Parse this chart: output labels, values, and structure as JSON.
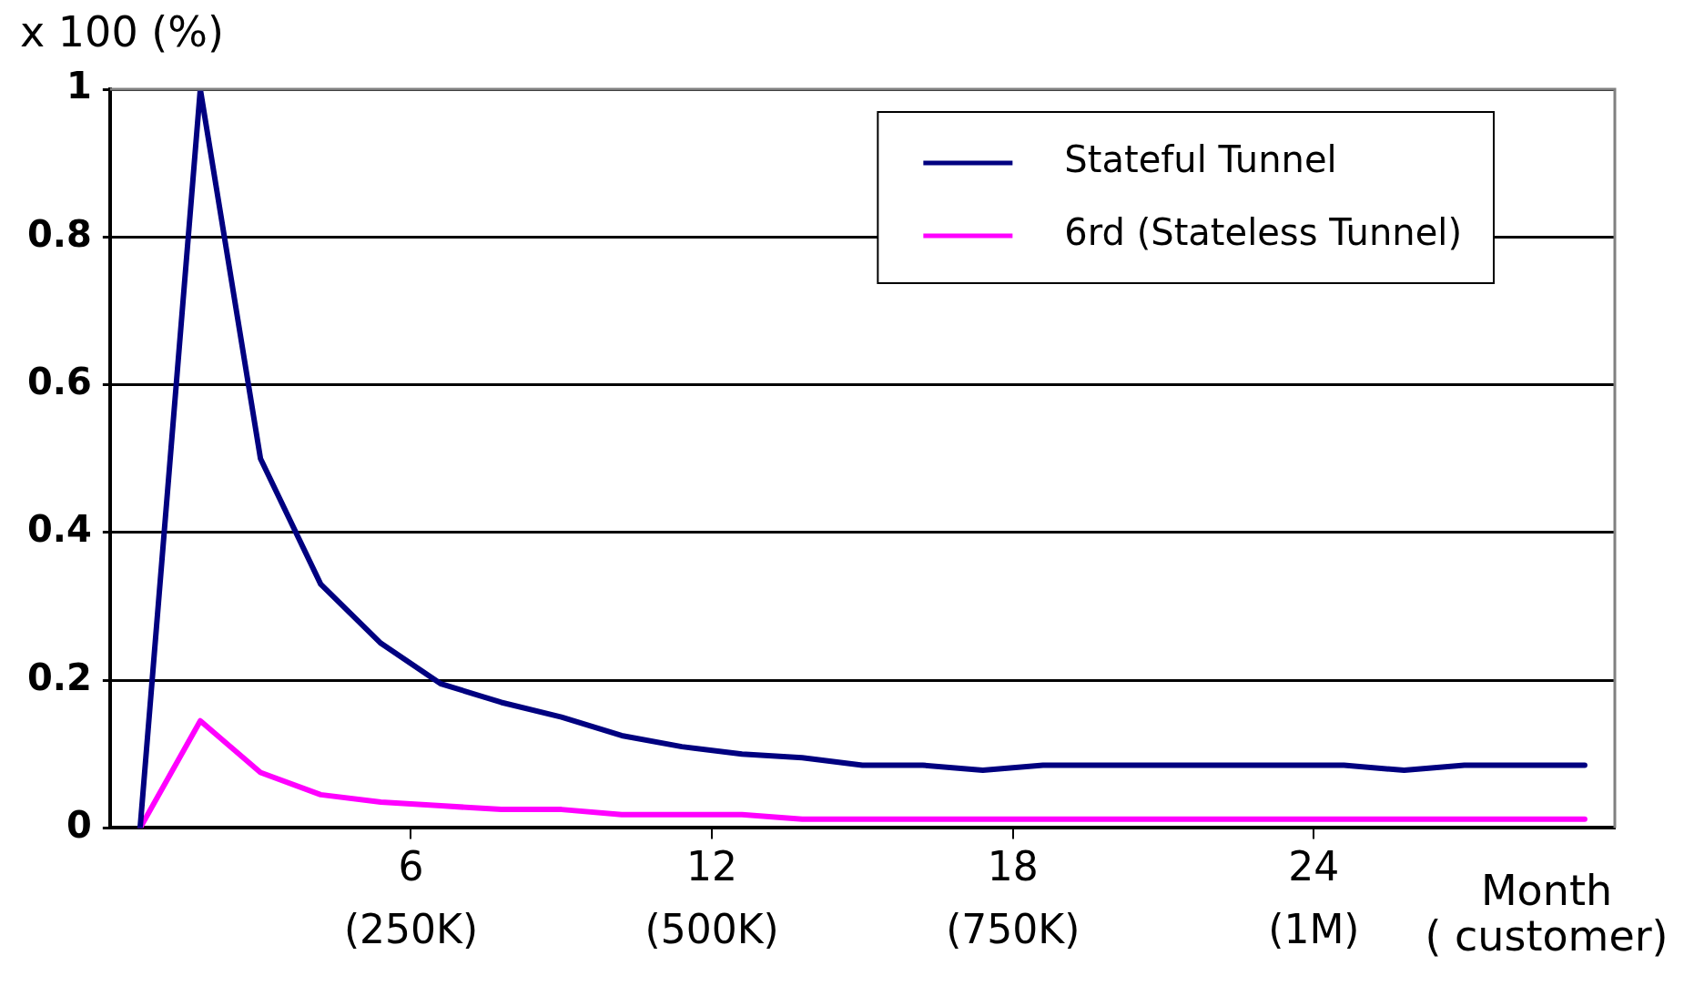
{
  "chart_data": {
    "type": "line",
    "ylabel": "x 100 (%)",
    "xlabel": "Month\n( customer)",
    "x": [
      0.6,
      1.8,
      3.0,
      4.2,
      5.4,
      6.6,
      7.8,
      9.0,
      10.2,
      11.4,
      12.6,
      13.8,
      15.0,
      16.2,
      17.4,
      18.6,
      19.8,
      21.0,
      22.2,
      23.4,
      24.6,
      25.8,
      27.0,
      28.2,
      29.4
    ],
    "series": [
      {
        "name": "Stateful Tunnel",
        "color": "#000080",
        "values": [
          0,
          1,
          0.5,
          0.33,
          0.25,
          0.195,
          0.17,
          0.15,
          0.125,
          0.11,
          0.1,
          0.095,
          0.085,
          0.085,
          0.078,
          0.085,
          0.085,
          0.085,
          0.085,
          0.085,
          0.085,
          0.078,
          0.085,
          0.085,
          0.085
        ]
      },
      {
        "name": "6rd (Stateless Tunnel)",
        "color": "#ff00ff",
        "values": [
          0,
          0.145,
          0.075,
          0.045,
          0.035,
          0.03,
          0.025,
          0.025,
          0.018,
          0.018,
          0.018,
          0.012,
          0.012,
          0.012,
          0.012,
          0.012,
          0.012,
          0.012,
          0.012,
          0.012,
          0.012,
          0.012,
          0.012,
          0.012,
          0.012
        ]
      }
    ],
    "xlim": [
      0,
      30
    ],
    "xticks": [
      6,
      12,
      18,
      24
    ],
    "x2lim": [
      0,
      1250000
    ],
    "x2ticks": [
      {
        "value": 250000,
        "label": "(250K)"
      },
      {
        "value": 500000,
        "label": "(500K)"
      },
      {
        "value": 750000,
        "label": "(750K)"
      },
      {
        "value": 1000000,
        "label": "(1M)"
      }
    ],
    "ylim": [
      0,
      1
    ],
    "yticks": [
      0,
      0.2,
      0.4,
      0.6,
      0.8,
      1
    ],
    "grid": "y",
    "legend": "top right",
    "marker": "none",
    "line_style": "solid"
  }
}
